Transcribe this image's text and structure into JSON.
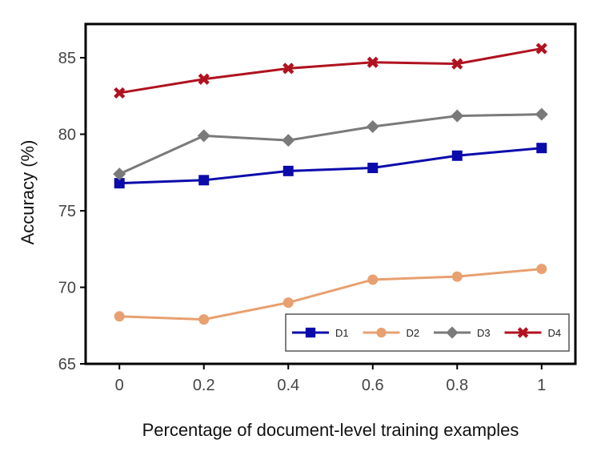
{
  "chart_data": {
    "type": "line",
    "xlabel": "Percentage of document-level training examples",
    "ylabel": "Accuracy (%)",
    "xlim": [
      -0.08,
      1.08
    ],
    "ylim": [
      65,
      87.2
    ],
    "x": [
      0,
      0.2,
      0.4,
      0.6,
      0.8,
      1
    ],
    "x_tick_labels": [
      "0",
      "0.2",
      "0.4",
      "0.6",
      "0.8",
      "1"
    ],
    "y_ticks": [
      65,
      70,
      75,
      80,
      85
    ],
    "y_tick_labels": [
      "65",
      "70",
      "75",
      "80",
      "85"
    ],
    "grid": false,
    "legend_position": "lower-right",
    "series": [
      {
        "name": "D1",
        "color": "#0b0bab",
        "marker": "square",
        "values": [
          76.8,
          77.0,
          77.6,
          77.8,
          78.6,
          79.1
        ]
      },
      {
        "name": "D2",
        "color": "#e8a070",
        "marker": "circle",
        "values": [
          68.1,
          67.9,
          69.0,
          70.5,
          70.7,
          71.2
        ]
      },
      {
        "name": "D3",
        "color": "#7a7a7a",
        "marker": "diamond",
        "values": [
          77.4,
          79.9,
          79.6,
          80.5,
          81.2,
          81.3
        ]
      },
      {
        "name": "D4",
        "color": "#b0121f",
        "marker": "x",
        "values": [
          82.7,
          83.6,
          84.3,
          84.7,
          84.6,
          85.6
        ]
      }
    ]
  }
}
